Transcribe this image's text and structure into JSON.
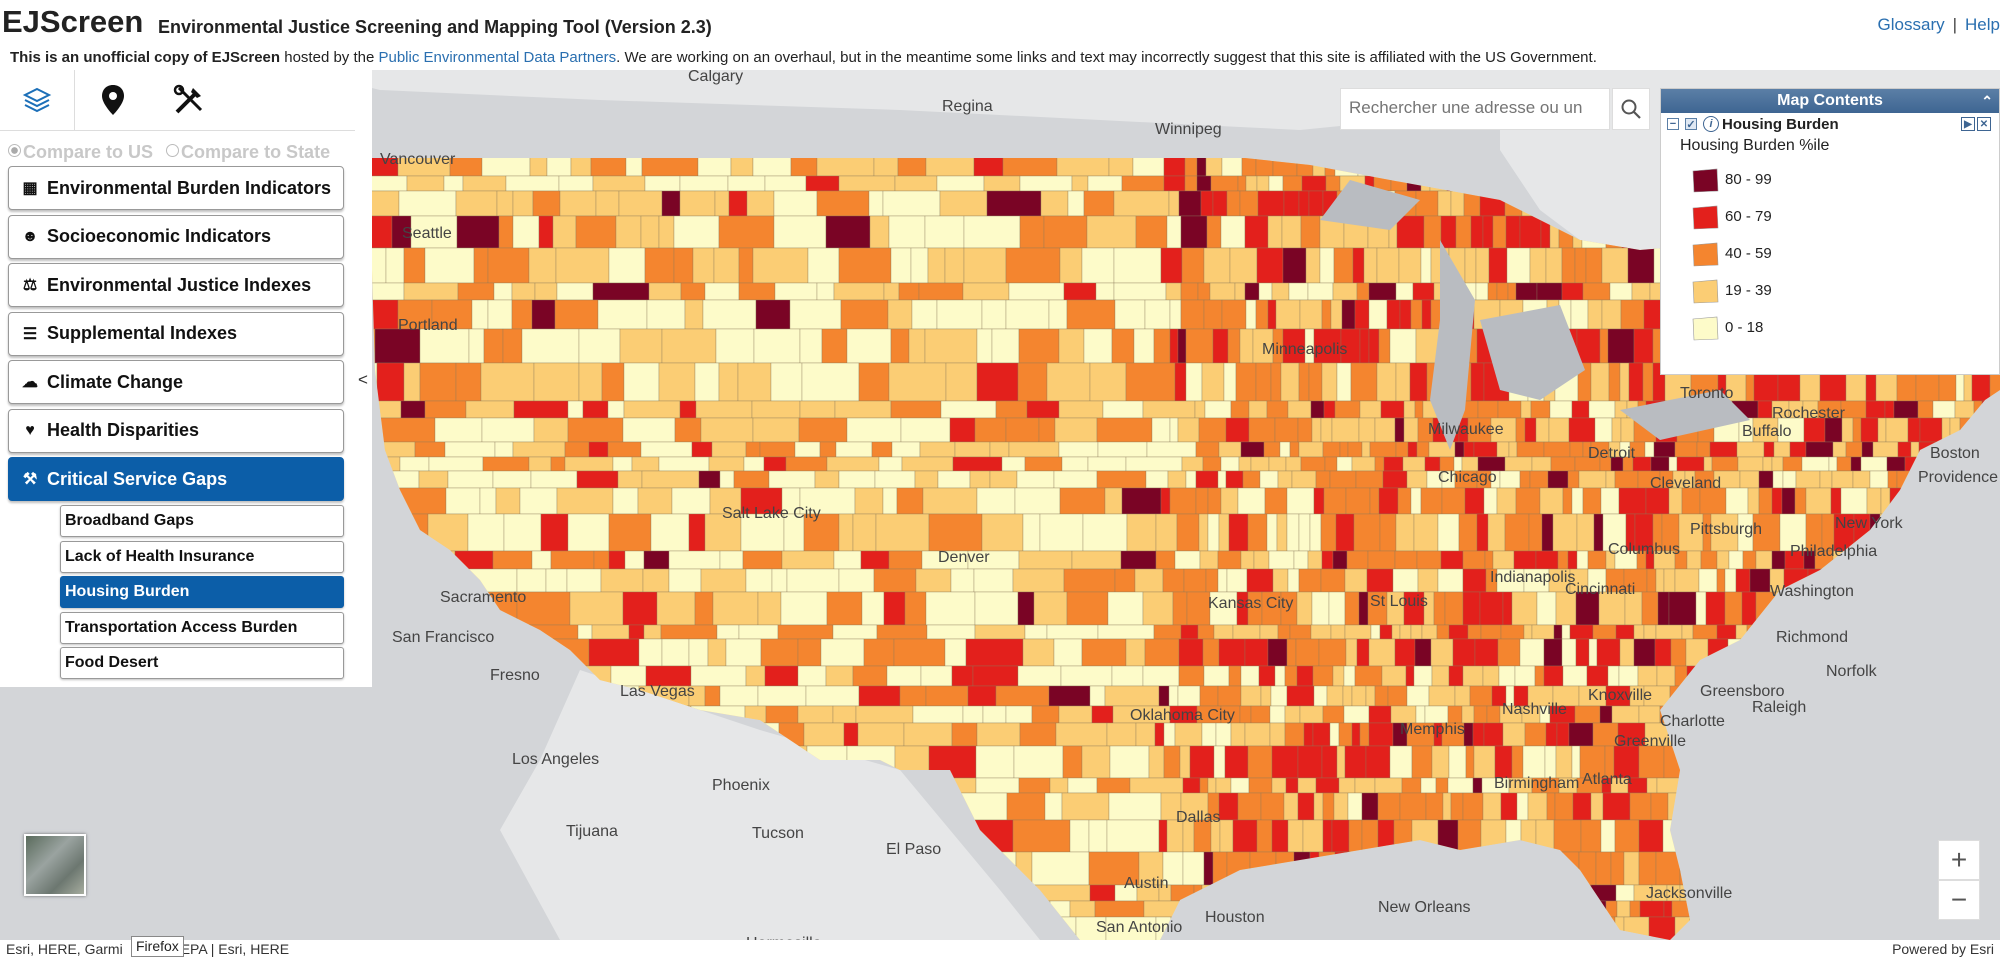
{
  "header": {
    "logo": "EJScreen",
    "title": "Environmental Justice Screening and Mapping Tool (Version 2.3)",
    "links": {
      "glossary": "Glossary",
      "separator": "|",
      "help": "Help"
    },
    "notice": {
      "bold": "This is an unofficial copy of EJScreen",
      "part1": " hosted by the ",
      "link": "Public Environmental Data Partners",
      "part2": ". We are working on an overhaul, but in the meantime some links and text may incorrectly suggest that this site is affiliated with the US Government."
    }
  },
  "sidebar": {
    "tool_icons": [
      "layers-icon",
      "location-pin-icon",
      "tools-icon"
    ],
    "compare": {
      "us": "Compare to US",
      "state": "Compare to State"
    },
    "categories": [
      {
        "label": "Environmental Burden Indicators",
        "icon": "factory-icon"
      },
      {
        "label": "Socioeconomic Indicators",
        "icon": "people-icon"
      },
      {
        "label": "Environmental Justice Indexes",
        "icon": "scales-icon"
      },
      {
        "label": "Supplemental Indexes",
        "icon": "list-icon"
      },
      {
        "label": "Climate Change",
        "icon": "climate-icon"
      },
      {
        "label": "Health Disparities",
        "icon": "heart-icon"
      },
      {
        "label": "Critical Service Gaps",
        "icon": "wrench-icon"
      }
    ],
    "subitems": [
      "Broadband Gaps",
      "Lack of Health Insurance",
      "Housing Burden",
      "Transportation Access Burden",
      "Food Desert"
    ],
    "active_category": "Critical Service Gaps",
    "active_subitem": "Housing Burden",
    "collapse_glyph": "<"
  },
  "search": {
    "placeholder": "Rechercher une adresse ou un"
  },
  "map_contents": {
    "title": "Map Contents",
    "layer": "Housing Burden",
    "legend_title": "Housing Burden %ile",
    "legend": [
      {
        "label": "80 - 99",
        "color": "#7a0425"
      },
      {
        "label": "60 - 79",
        "color": "#e3201c"
      },
      {
        "label": "40 - 59",
        "color": "#f4852f"
      },
      {
        "label": "19 - 39",
        "color": "#fbcd74"
      },
      {
        "label": "0 - 18",
        "color": "#fdfbc9"
      }
    ]
  },
  "map": {
    "labels": {
      "calgary": "Calgary",
      "regina": "Regina",
      "winnipeg": "Winnipeg",
      "vancouver": "Vancouver",
      "seattle": "Seattle",
      "portland": "Portland",
      "minneapolis": "Minneapolis",
      "toronto": "Toronto",
      "milwaukee": "Milwaukee",
      "chicago": "Chicago",
      "detroit": "Detroit",
      "cleveland": "Cleveland",
      "buffalo": "Buffalo",
      "rochester": "Rochester",
      "boston": "Boston",
      "providence": "Providence",
      "new_york": "New York",
      "philadelphia": "Philadelphia",
      "washington": "Washington",
      "pittsburgh": "Pittsburgh",
      "columbus": "Columbus",
      "cincinnati": "Cincinnati",
      "indianapolis": "Indianapolis",
      "st_louis": "St Louis",
      "kansas_city": "Kansas City",
      "denver": "Denver",
      "salt_lake": "Salt Lake City",
      "sacramento": "Sacramento",
      "san_francisco": "San Francisco",
      "fresno": "Fresno",
      "las_vegas": "Las Vegas",
      "los_angeles": "Los Angeles",
      "tijuana": "Tijuana",
      "phoenix": "Phoenix",
      "tucson": "Tucson",
      "el_paso": "El Paso",
      "hermosillo": "Hermosillo",
      "oklahoma_city": "Oklahoma City",
      "dallas": "Dallas",
      "memphis": "Memphis",
      "nashville": "Nashville",
      "knoxville": "Knoxville",
      "charlotte": "Charlotte",
      "greensboro": "Greensboro",
      "raleigh": "Raleigh",
      "norfolk": "Norfolk",
      "richmond": "Richmond",
      "atlanta": "Atlanta",
      "birmingham": "Birmingham",
      "greenville": "Greenville",
      "austin": "Austin",
      "san_antonio": "San Antonio",
      "houston": "Houston",
      "new_orleans": "New Orleans",
      "jacksonville": "Jacksonville"
    }
  },
  "zoom": {
    "in": "+",
    "out": "−"
  },
  "attribution": {
    "left_a": "Esri, HERE, Garmi",
    "left_b": "EPA | Esri, HERE",
    "right": "Powered by Esri",
    "tooltip": "Firefox"
  }
}
